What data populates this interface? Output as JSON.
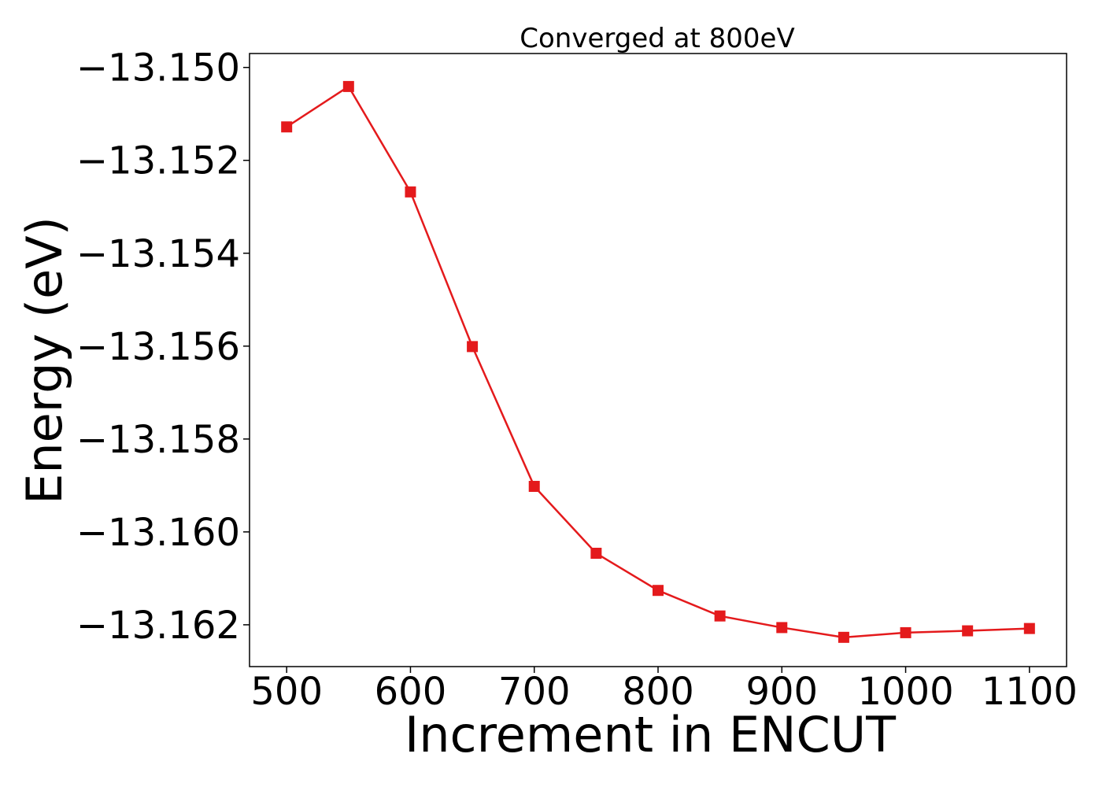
{
  "chart_data": {
    "type": "line",
    "title": "Converged at 800eV",
    "xlabel": "Increment in ENCUT",
    "ylabel": "Energy (eV)",
    "xlim": [
      470,
      1130
    ],
    "ylim": [
      -13.1629,
      -13.1497
    ],
    "x_ticks": [
      500,
      600,
      700,
      800,
      900,
      1000,
      1100
    ],
    "x_tick_labels": [
      "500",
      "600",
      "700",
      "800",
      "900",
      "1000",
      "1100"
    ],
    "y_ticks": [
      -13.15,
      -13.152,
      -13.154,
      -13.156,
      -13.158,
      -13.16,
      -13.162
    ],
    "y_tick_labels": [
      "−13.150",
      "−13.152",
      "−13.154",
      "−13.156",
      "−13.158",
      "−13.160",
      "−13.162"
    ],
    "grid": false,
    "legend": "none",
    "series": [
      {
        "color": "#e41a1c",
        "marker": "square",
        "x": [
          500,
          550,
          600,
          650,
          700,
          750,
          800,
          850,
          900,
          950,
          1000,
          1050,
          1100
        ],
        "y": [
          -13.15128,
          -13.15041,
          -13.15268,
          -13.15601,
          -13.15902,
          -13.16046,
          -13.16126,
          -13.16181,
          -13.16206,
          -13.16227,
          -13.16217,
          -13.16213,
          -13.16208
        ]
      }
    ]
  }
}
